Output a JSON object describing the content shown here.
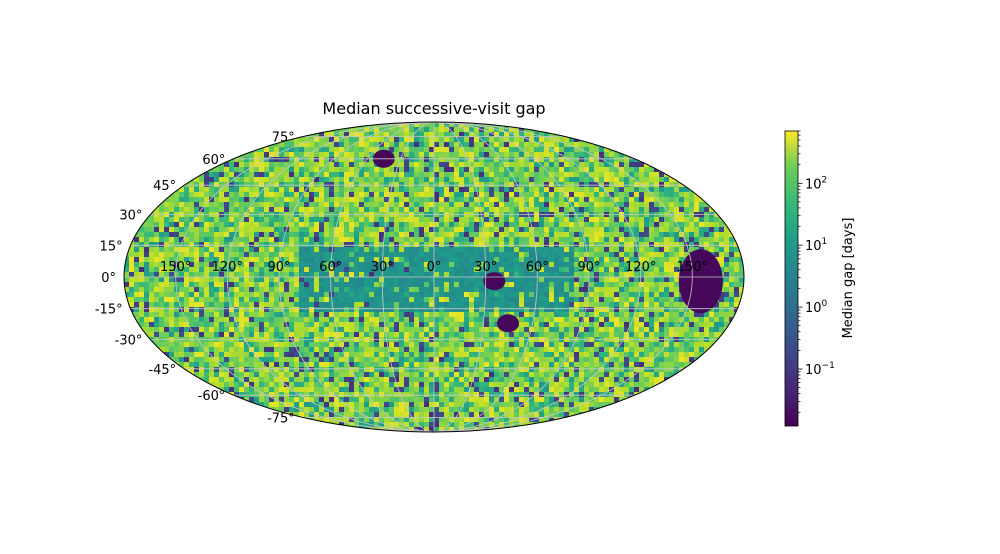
{
  "chart_data": {
    "type": "heatmap",
    "projection": "mollweide",
    "title": "Median successive-visit gap",
    "grid": true,
    "lon_ticks": [
      "150°",
      "120°",
      "90°",
      "60°",
      "30°",
      "0°",
      "30°",
      "60°",
      "90°",
      "120°",
      "150°"
    ],
    "lon_tick_values": [
      -150,
      -120,
      -90,
      -60,
      -30,
      0,
      30,
      60,
      90,
      120,
      150
    ],
    "lat_ticks": [
      "75°",
      "60°",
      "45°",
      "30°",
      "15°",
      "0°",
      "-15°",
      "-30°",
      "-45°",
      "-60°",
      "-75°"
    ],
    "lat_tick_values": [
      75,
      60,
      45,
      30,
      15,
      0,
      -15,
      -30,
      -45,
      -60,
      -75
    ],
    "colormap": "viridis",
    "colorbar": {
      "label": "Median gap [days]",
      "scale": "log",
      "range": [
        0.012,
        700
      ],
      "ticks": [
        {
          "value": 0.1,
          "base": "10",
          "exp": "−1"
        },
        {
          "value": 1,
          "base": "10",
          "exp": "0"
        },
        {
          "value": 10,
          "base": "10",
          "exp": "1"
        },
        {
          "value": 100,
          "base": "10",
          "exp": "2"
        }
      ]
    },
    "regions": [
      {
        "name": "galactic-plane-low-gap-band",
        "value": 2,
        "note": "uniform teal band around the galactic plane"
      },
      {
        "name": "deep-drilling-field-east",
        "value": 0.015,
        "lon": 155,
        "lat": -2
      },
      {
        "name": "deep-drilling-field-center",
        "value": 0.015,
        "lon": 35,
        "lat": -2
      },
      {
        "name": "deep-drilling-field-south",
        "value": 0.015,
        "lon": 45,
        "lat": -22
      },
      {
        "name": "deep-drilling-field-north",
        "value": 0.015,
        "lon": -45,
        "lat": 60
      }
    ],
    "typical_value": 50
  }
}
